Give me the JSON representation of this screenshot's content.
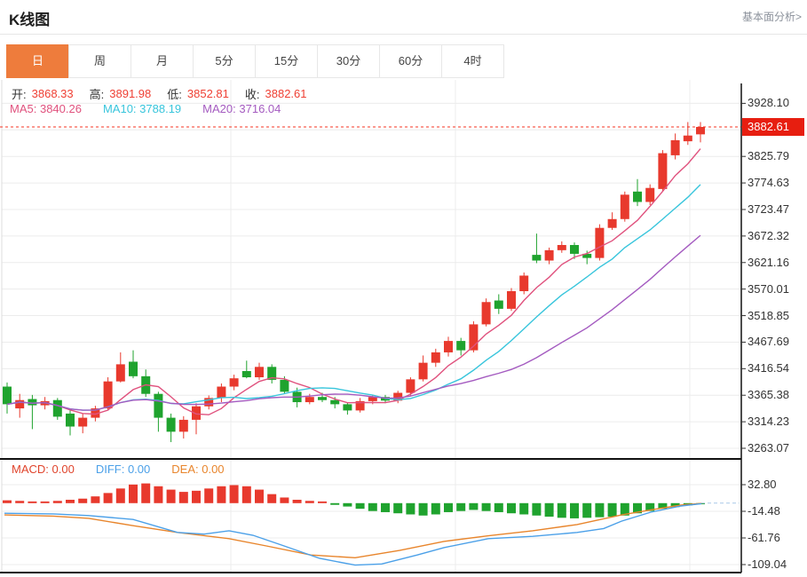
{
  "page": {
    "title": "K线图",
    "link": "基本面分析>"
  },
  "tabs": {
    "items": [
      {
        "id": "day",
        "label": "日",
        "selected": true
      },
      {
        "id": "week",
        "label": "周",
        "selected": false
      },
      {
        "id": "month",
        "label": "月",
        "selected": false
      },
      {
        "id": "5min",
        "label": "5分",
        "selected": false
      },
      {
        "id": "15min",
        "label": "15分",
        "selected": false
      },
      {
        "id": "30min",
        "label": "30分",
        "selected": false
      },
      {
        "id": "60min",
        "label": "60分",
        "selected": false
      },
      {
        "id": "4hour",
        "label": "4时",
        "selected": false
      }
    ]
  },
  "quote": {
    "open_label": "开:",
    "open": "3868.33",
    "high_label": "高:",
    "high": "3891.98",
    "low_label": "低:",
    "low": "3852.81",
    "close_label": "收:",
    "close": "3882.61"
  },
  "ma_header": {
    "ma5_label": "MA5:",
    "ma5": "3840.26",
    "ma10_label": "MA10:",
    "ma10": "3788.19",
    "ma20_label": "MA20:",
    "ma20": "3716.04"
  },
  "macd_header": {
    "macd_label": "MACD:",
    "macd": "0.00",
    "diff_label": "DIFF:",
    "diff": "0.00",
    "dea_label": "DEA:",
    "dea": "0.00"
  },
  "colors": {
    "tab_selected": "#ee7c3c",
    "up": "#e8392d",
    "down": "#1fa32e",
    "value_red": "#ef4034",
    "ma5": "#e0527e",
    "ma10": "#38c5dc",
    "ma20": "#a45bc0",
    "macd_label": "#e0442c",
    "diff_line": "#4ba0e8",
    "dea_line": "#e8852c",
    "badge": "#e71e10",
    "dashed_current": "#f53320",
    "grid": "#ececec",
    "axis": "#111111",
    "dashed_zero": "#a8c8e8"
  },
  "main_axis": {
    "labels": [
      "3928.10",
      "3825.79",
      "3774.63",
      "3723.47",
      "3672.32",
      "3621.16",
      "3570.01",
      "3518.85",
      "3467.69",
      "3416.54",
      "3365.38",
      "3314.23",
      "3263.07"
    ],
    "current": "3882.61"
  },
  "macd_axis": {
    "labels": [
      "32.80",
      "-14.48",
      "-61.76",
      "-109.04"
    ]
  },
  "chart_data": {
    "type": "candlestick",
    "panes": [
      {
        "name": "price",
        "ylim": [
          3263.07,
          3928.1
        ],
        "grid_values": [
          3928.1,
          3876.95,
          3825.79,
          3774.63,
          3723.47,
          3672.32,
          3621.16,
          3570.01,
          3518.85,
          3467.69,
          3416.54,
          3365.38,
          3314.23,
          3263.07
        ],
        "current_price": 3882.61,
        "last_bar": {
          "open": 3868.33,
          "high": 3891.98,
          "low": 3852.81,
          "close": 3882.61
        },
        "overlays": [
          {
            "name": "MA5",
            "last_value": 3840.26
          },
          {
            "name": "MA10",
            "last_value": 3788.19
          },
          {
            "name": "MA20",
            "last_value": 3716.04
          }
        ],
        "candles_ohlc": [
          [
            3382,
            3390,
            3330,
            3348
          ],
          [
            3340,
            3368,
            3322,
            3356
          ],
          [
            3358,
            3366,
            3300,
            3346
          ],
          [
            3346,
            3362,
            3338,
            3354
          ],
          [
            3356,
            3360,
            3318,
            3324
          ],
          [
            3330,
            3338,
            3288,
            3305
          ],
          [
            3305,
            3330,
            3292,
            3322
          ],
          [
            3322,
            3345,
            3315,
            3340
          ],
          [
            3340,
            3400,
            3336,
            3392
          ],
          [
            3392,
            3448,
            3390,
            3425
          ],
          [
            3430,
            3452,
            3398,
            3402
          ],
          [
            3402,
            3415,
            3362,
            3368
          ],
          [
            3368,
            3372,
            3295,
            3322
          ],
          [
            3322,
            3330,
            3275,
            3295
          ],
          [
            3295,
            3325,
            3282,
            3318
          ],
          [
            3318,
            3350,
            3290,
            3344
          ],
          [
            3344,
            3365,
            3338,
            3360
          ],
          [
            3360,
            3388,
            3352,
            3382
          ],
          [
            3382,
            3405,
            3375,
            3398
          ],
          [
            3412,
            3432,
            3398,
            3400
          ],
          [
            3400,
            3428,
            3395,
            3420
          ],
          [
            3420,
            3425,
            3388,
            3395
          ],
          [
            3395,
            3402,
            3368,
            3372
          ],
          [
            3372,
            3380,
            3342,
            3352
          ],
          [
            3352,
            3368,
            3348,
            3362
          ],
          [
            3362,
            3370,
            3352,
            3356
          ],
          [
            3356,
            3362,
            3340,
            3348
          ],
          [
            3348,
            3352,
            3328,
            3336
          ],
          [
            3336,
            3360,
            3332,
            3354
          ],
          [
            3354,
            3366,
            3348,
            3362
          ],
          [
            3362,
            3366,
            3350,
            3355
          ],
          [
            3355,
            3374,
            3350,
            3370
          ],
          [
            3370,
            3400,
            3365,
            3396
          ],
          [
            3396,
            3442,
            3392,
            3428
          ],
          [
            3428,
            3455,
            3420,
            3448
          ],
          [
            3448,
            3478,
            3440,
            3470
          ],
          [
            3470,
            3476,
            3442,
            3452
          ],
          [
            3452,
            3508,
            3448,
            3502
          ],
          [
            3502,
            3552,
            3498,
            3545
          ],
          [
            3548,
            3560,
            3522,
            3532
          ],
          [
            3532,
            3572,
            3528,
            3566
          ],
          [
            3566,
            3602,
            3560,
            3596
          ],
          [
            3636,
            3677,
            3620,
            3625
          ],
          [
            3625,
            3650,
            3618,
            3645
          ],
          [
            3645,
            3662,
            3640,
            3655
          ],
          [
            3655,
            3660,
            3628,
            3638
          ],
          [
            3638,
            3644,
            3618,
            3630
          ],
          [
            3630,
            3695,
            3625,
            3688
          ],
          [
            3688,
            3718,
            3684,
            3705
          ],
          [
            3705,
            3758,
            3700,
            3752
          ],
          [
            3758,
            3782,
            3730,
            3738
          ],
          [
            3738,
            3772,
            3732,
            3765
          ],
          [
            3763,
            3838,
            3758,
            3832
          ],
          [
            3828,
            3870,
            3820,
            3857
          ],
          [
            3855,
            3892,
            3848,
            3866
          ],
          [
            3868.33,
            3891.98,
            3852.81,
            3882.61
          ]
        ]
      },
      {
        "name": "macd",
        "ylim": [
          -109.04,
          32.8
        ],
        "grid_values": [
          32.8,
          -14.48,
          -61.76,
          -109.04
        ],
        "values": {
          "macd": 0.0,
          "diff": 0.0,
          "dea": 0.0
        },
        "histogram": [
          5,
          4,
          3,
          3,
          4,
          6,
          8,
          12,
          18,
          26,
          33,
          35,
          30,
          24,
          20,
          22,
          26,
          30,
          32,
          30,
          24,
          16,
          10,
          6,
          4,
          3,
          -3,
          -6,
          -10,
          -14,
          -16,
          -18,
          -20,
          -22,
          -20,
          -16,
          -14,
          -12,
          -14,
          -16,
          -18,
          -20,
          -22,
          -24,
          -26,
          -27,
          -26,
          -25,
          -24,
          -22,
          -18,
          -14,
          -10,
          -7,
          -4,
          -2
        ],
        "diff_line": [
          [
            5,
            -18
          ],
          [
            60,
            -19
          ],
          [
            100,
            -22
          ],
          [
            150,
            -29
          ],
          [
            200,
            -52
          ],
          [
            230,
            -55
          ],
          [
            258,
            -49
          ],
          [
            285,
            -57
          ],
          [
            320,
            -76
          ],
          [
            360,
            -98
          ],
          [
            400,
            -110
          ],
          [
            430,
            -108
          ],
          [
            470,
            -92
          ],
          [
            500,
            -79
          ],
          [
            550,
            -63
          ],
          [
            600,
            -59
          ],
          [
            650,
            -52
          ],
          [
            680,
            -45
          ],
          [
            700,
            -32
          ],
          [
            733,
            -16
          ],
          [
            767,
            -5
          ],
          [
            790,
            -1
          ]
        ],
        "dea_line": [
          [
            5,
            -21
          ],
          [
            60,
            -23
          ],
          [
            100,
            -27
          ],
          [
            150,
            -40
          ],
          [
            200,
            -52
          ],
          [
            258,
            -63
          ],
          [
            300,
            -76
          ],
          [
            350,
            -92
          ],
          [
            400,
            -97
          ],
          [
            450,
            -84
          ],
          [
            500,
            -68
          ],
          [
            550,
            -58
          ],
          [
            600,
            -49
          ],
          [
            650,
            -38
          ],
          [
            700,
            -21
          ],
          [
            733,
            -12
          ],
          [
            767,
            -3.5
          ],
          [
            790,
            -0.5
          ]
        ]
      }
    ]
  }
}
